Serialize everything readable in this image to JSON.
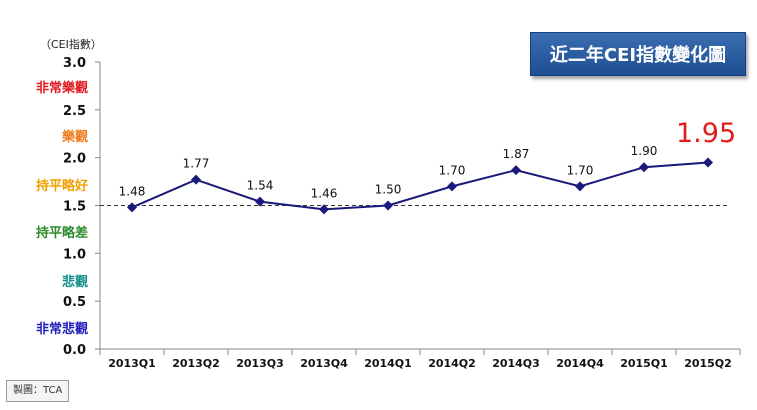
{
  "title": "近二年CEI指數變化圖",
  "unit_label": "（CEI指數）",
  "credit": "製圖：TCA",
  "highlight_value": "1.95",
  "bands": [
    {
      "label": "非常樂觀",
      "color": "#e0191f"
    },
    {
      "label": "樂觀",
      "color": "#f07a1a"
    },
    {
      "label": "持平略好",
      "color": "#f0a000"
    },
    {
      "label": "持平略差",
      "color": "#2e8b2e"
    },
    {
      "label": "悲觀",
      "color": "#16908c"
    },
    {
      "label": "非常悲觀",
      "color": "#2222bb"
    }
  ],
  "colors": {
    "line": "#1a1a7a",
    "marker": "#1a1a7a",
    "reference": "#333333"
  },
  "chart_data": {
    "type": "line",
    "categories": [
      "2013Q1",
      "2013Q2",
      "2013Q3",
      "2013Q4",
      "2014Q1",
      "2014Q2",
      "2014Q3",
      "2014Q4",
      "2015Q1",
      "2015Q2"
    ],
    "series": [
      {
        "values": [
          1.48,
          1.77,
          1.54,
          1.46,
          1.5,
          1.7,
          1.87,
          1.7,
          1.9,
          1.95
        ]
      }
    ],
    "value_labels": [
      "1.48",
      "1.77",
      "1.54",
      "1.46",
      "1.50",
      "1.70",
      "1.87",
      "1.70",
      "1.90",
      ""
    ],
    "yticks": [
      "0.0",
      "0.5",
      "1.0",
      "1.5",
      "2.0",
      "2.5",
      "3.0"
    ],
    "ylim": [
      0,
      3
    ],
    "reference_line": 1.5,
    "grid": false
  }
}
